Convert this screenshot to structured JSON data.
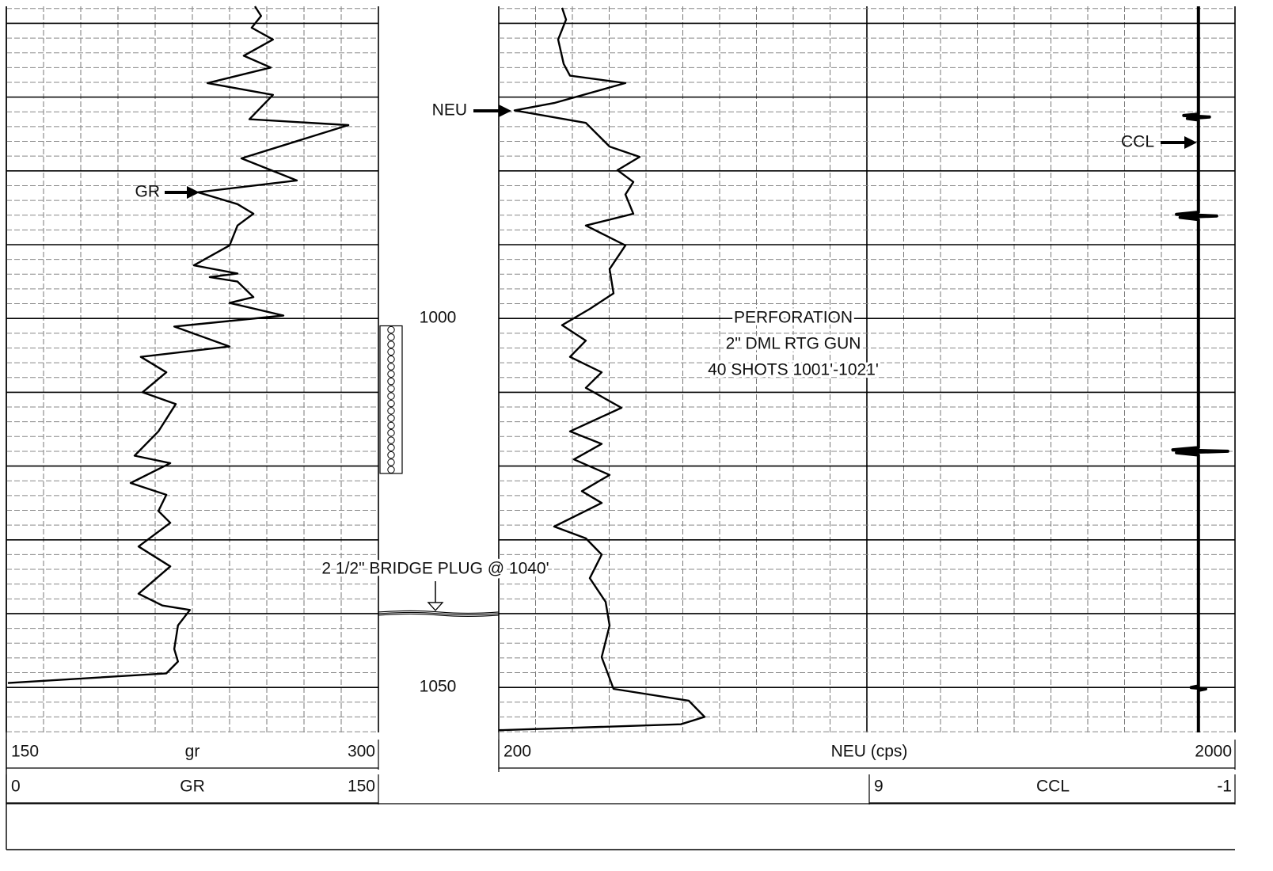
{
  "chart_data": {
    "type": "well-log",
    "ylim": [
      957.7,
      1056.1
    ],
    "yticks": [
      1000,
      1050
    ],
    "grid": true,
    "series": [
      {
        "name": "GR",
        "color": "#000000",
        "xlim": [
          0,
          150
        ],
        "backup": {
          "name": "gr",
          "xlim": [
            150,
            300
          ]
        },
        "depth": [
          957.7,
          959.0,
          960.6,
          962.2,
          964.4,
          966.0,
          968.1,
          969.7,
          973.0,
          973.8,
          978.3,
          981.3,
          982.9,
          984.5,
          985.8,
          987.4,
          990.1,
          992.8,
          993.9,
          994.4,
          995.0,
          997.1,
          997.9,
          999.6,
          1001.1,
          1003.8,
          1005.2,
          1007.3,
          1010.0,
          1011.6,
          1015.3,
          1018.6,
          1019.6,
          1022.3,
          1023.9,
          1026.1,
          1027.7,
          1030.9,
          1033.6,
          1037.3,
          1038.9,
          1039.5,
          1041.6,
          1044.8,
          1046.5,
          1048.1,
          1049.4
        ],
        "values": [
          100.2,
          102.7,
          98.9,
          107.5,
          95.7,
          106.6,
          81.1,
          107.5,
          98.0,
          137.9,
          94.8,
          117.1,
          77.2,
          93.2,
          99.6,
          93.2,
          90.0,
          75.6,
          93.2,
          82.0,
          93.2,
          99.6,
          90.0,
          111.7,
          67.7,
          90.0,
          54.2,
          64.5,
          54.9,
          68.3,
          61.3,
          51.7,
          66.1,
          50.1,
          64.5,
          61.3,
          66.1,
          53.3,
          66.1,
          53.3,
          62.9,
          74.0,
          69.2,
          67.7,
          69.2,
          64.5,
          0.6
        ]
      },
      {
        "name": "NEU",
        "scale_title": "NEU (cps)",
        "color": "#000000",
        "xlim": [
          200,
          2000
        ],
        "depth": [
          957.9,
          959.5,
          962.2,
          965.5,
          967.1,
          968.1,
          970.8,
          971.8,
          973.5,
          976.7,
          978.1,
          979.9,
          981.5,
          983.2,
          985.8,
          987.4,
          990.1,
          993.3,
          996.6,
          998.7,
          1000.9,
          1003.0,
          1005.2,
          1007.3,
          1009.4,
          1012.1,
          1015.3,
          1017.0,
          1019.1,
          1021.2,
          1023.4,
          1025.0,
          1028.2,
          1029.8,
          1032.0,
          1035.2,
          1038.4,
          1041.6,
          1045.9,
          1050.2,
          1051.8,
          1054.0,
          1055.0,
          1055.8
        ],
        "values": [
          354.8,
          364.5,
          345.2,
          358.7,
          374.2,
          509.7,
          335.5,
          238.7,
          412.9,
          471.0,
          544.5,
          490.3,
          529.0,
          509.7,
          529.0,
          412.9,
          509.7,
          471.0,
          480.6,
          422.6,
          354.8,
          412.9,
          374.2,
          451.6,
          412.9,
          500.0,
          374.2,
          451.6,
          383.9,
          471.0,
          403.2,
          451.6,
          335.5,
          412.9,
          451.6,
          422.6,
          461.3,
          471.0,
          451.6,
          480.6,
          664.5,
          703.2,
          645.2,
          200.0
        ]
      },
      {
        "name": "CCL",
        "color": "#000000",
        "xlim": [
          9,
          -1
        ],
        "depth": [
          957.7,
          972.3,
          972.5,
          972.7,
          972.9,
          973.1,
          985.6,
          985.9,
          986.1,
          986.3,
          986.6,
          1017.5,
          1017.8,
          1018.0,
          1018.2,
          1018.5,
          1049.8,
          1050.0,
          1050.2,
          1050.4,
          1056.1
        ],
        "values": [
          0,
          0,
          0.4,
          -0.3,
          0.3,
          0,
          0,
          0.6,
          -0.5,
          0.5,
          0,
          0,
          0.7,
          -0.8,
          0.6,
          0,
          0,
          0.2,
          -0.2,
          0,
          0
        ]
      }
    ],
    "perforation": {
      "text": [
        "PERFORATION",
        "2\" DML RTG GUN",
        "40 SHOTS 1001'-1021'"
      ],
      "top": 1001,
      "bottom": 1021
    },
    "bridge_plug": {
      "text": "2 1/2\" BRIDGE PLUG @ 1040'",
      "depth": 1040
    }
  }
}
